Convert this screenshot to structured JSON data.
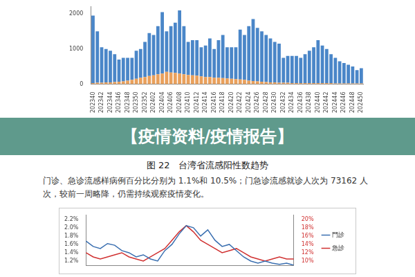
{
  "banner": "【疫情资料/疫情报告】",
  "caption": "图 22   台湾省流感阳性数趋势",
  "paragraph": "门诊、急诊流感样病例百分比分别为 1.1%和 10.5%；门急诊流感就诊人次为 73162 人次，较前一周略降，仍需持续观察疫情变化。",
  "chart_data": [
    {
      "type": "bar",
      "stacked": true,
      "grid": false,
      "categories": [
        "202340",
        null,
        "202342",
        null,
        "202344",
        null,
        "202346",
        null,
        "202348",
        null,
        "202350",
        null,
        "202352",
        null,
        "202402",
        null,
        "202404",
        null,
        "202406",
        null,
        "202408",
        null,
        "202410",
        null,
        "202412",
        null,
        "202414",
        null,
        "202416",
        null,
        "202418",
        null,
        "202420",
        null,
        "202422",
        null,
        "202424",
        null,
        "202426",
        null,
        "202428",
        null,
        "202430",
        null,
        "202432",
        null,
        "202434",
        null,
        "202436",
        null,
        "202438",
        null,
        "202440",
        null,
        "202442",
        null,
        "202444",
        null,
        "202446",
        null,
        "202448",
        null,
        "202450"
      ],
      "series": [
        {
          "color": "#e9a05c",
          "values": [
            30,
            40,
            40,
            50,
            50,
            60,
            70,
            80,
            100,
            120,
            150,
            180,
            200,
            230,
            250,
            280,
            300,
            350,
            330,
            320,
            300,
            280,
            260,
            250,
            240,
            220,
            200,
            200,
            180,
            180,
            170,
            160,
            150,
            140,
            130,
            120,
            100,
            90,
            80,
            70,
            60,
            50,
            50,
            40,
            40,
            40,
            30,
            30,
            30,
            30,
            30,
            30,
            30,
            30,
            30,
            30,
            20,
            20,
            20,
            20,
            20,
            20,
            20
          ]
        },
        {
          "color": "#4a86c8",
          "values": [
            1920,
            1460,
            1010,
            950,
            900,
            790,
            630,
            670,
            650,
            630,
            800,
            820,
            1000,
            1220,
            1150,
            1370,
            1750,
            1150,
            1320,
            1430,
            1800,
            1370,
            940,
            1000,
            1010,
            830,
            900,
            1100,
            820,
            1070,
            1230,
            890,
            900,
            910,
            1420,
            1280,
            1550,
            1760,
            1520,
            1430,
            1340,
            1250,
            1150,
            1110,
            710,
            760,
            770,
            770,
            720,
            820,
            920,
            1020,
            1220,
            1070,
            970,
            820,
            730,
            630,
            580,
            530,
            480,
            380,
            430
          ]
        }
      ],
      "ylim": [
        0,
        2200
      ],
      "yticks": [
        0,
        1000,
        2000
      ]
    },
    {
      "type": "line",
      "grid": false,
      "legend": "right",
      "tick_labels": "y",
      "categories": [
        null,
        null,
        null,
        null,
        null,
        null,
        null,
        null,
        null,
        null,
        null,
        null,
        null,
        null,
        null,
        null,
        null,
        null,
        null,
        null,
        null,
        null,
        null,
        null,
        null,
        null,
        null,
        null,
        null,
        null
      ],
      "series": [
        {
          "name": "門診",
          "color": "#3a6fb0",
          "values": [
            1.68,
            1.55,
            1.5,
            1.62,
            1.58,
            1.45,
            1.4,
            1.3,
            1.35,
            1.25,
            1.2,
            1.45,
            1.6,
            1.85,
            2.05,
            2.0,
            1.8,
            1.95,
            1.7,
            1.55,
            1.6,
            1.45,
            1.3,
            1.2,
            1.15,
            1.2,
            1.15,
            1.12,
            1.15,
            1.1
          ]
        },
        {
          "name": "急診",
          "color": "#d03030",
          "axis": "y2",
          "values": [
            12,
            11,
            10.5,
            11,
            11.5,
            12,
            11,
            10.5,
            10,
            11,
            12,
            13,
            15,
            17,
            18.5,
            17,
            15,
            14,
            13,
            12,
            12.5,
            13,
            12,
            11,
            10.5,
            10,
            10.5,
            11,
            10.5,
            10.5
          ]
        }
      ],
      "ylim": [
        1.1,
        2.3
      ],
      "yticks": [
        {
          "value": 1.2,
          "label": "1.2%"
        },
        {
          "value": 1.4,
          "label": "1.4%"
        },
        {
          "value": 1.6,
          "label": "1.6%"
        },
        {
          "value": 1.8,
          "label": "1.8%"
        },
        {
          "value": 2.0,
          "label": "2.0%"
        },
        {
          "value": 2.2,
          "label": "2.2%"
        }
      ],
      "y2lim": [
        9,
        21
      ],
      "y2ticks": [
        {
          "value": 10,
          "label": "10%"
        },
        {
          "value": 12,
          "label": "12%"
        },
        {
          "value": 14,
          "label": "14%"
        },
        {
          "value": 16,
          "label": "16%"
        },
        {
          "value": 18,
          "label": "18%"
        },
        {
          "value": 20,
          "label": "20%"
        }
      ]
    }
  ]
}
